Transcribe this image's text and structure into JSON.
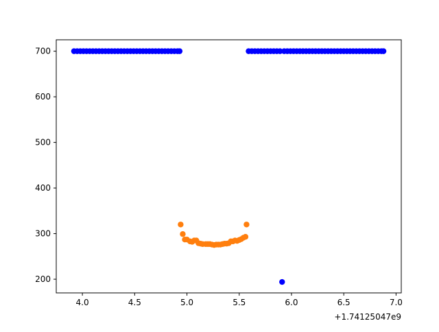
{
  "chart_data": {
    "type": "scatter",
    "title": "",
    "xlabel": "",
    "ylabel": "",
    "x_offset_label": "+1.74125047e9",
    "xlim": [
      3.75,
      7.05
    ],
    "ylim": [
      170,
      725
    ],
    "xticks": [
      {
        "value": 4.0,
        "label": "4.0"
      },
      {
        "value": 4.5,
        "label": "4.5"
      },
      {
        "value": 5.0,
        "label": "5.0"
      },
      {
        "value": 5.5,
        "label": "5.5"
      },
      {
        "value": 6.0,
        "label": "6.0"
      },
      {
        "value": 6.5,
        "label": "6.5"
      },
      {
        "value": 7.0,
        "label": "7.0"
      }
    ],
    "yticks": [
      {
        "value": 200,
        "label": "200"
      },
      {
        "value": 300,
        "label": "300"
      },
      {
        "value": 400,
        "label": "400"
      },
      {
        "value": 500,
        "label": "500"
      },
      {
        "value": 600,
        "label": "600"
      },
      {
        "value": 700,
        "label": "700"
      }
    ],
    "grid": false,
    "legend": "none",
    "series": [
      {
        "color": "#0000ff",
        "points": [
          [
            3.92,
            700
          ],
          [
            3.95,
            700
          ],
          [
            3.98,
            700
          ],
          [
            4.01,
            700
          ],
          [
            4.04,
            700
          ],
          [
            4.07,
            700
          ],
          [
            4.1,
            700
          ],
          [
            4.13,
            700
          ],
          [
            4.16,
            700
          ],
          [
            4.19,
            700
          ],
          [
            4.22,
            700
          ],
          [
            4.25,
            700
          ],
          [
            4.28,
            700
          ],
          [
            4.31,
            700
          ],
          [
            4.34,
            700
          ],
          [
            4.37,
            700
          ],
          [
            4.4,
            700
          ],
          [
            4.43,
            700
          ],
          [
            4.46,
            700
          ],
          [
            4.49,
            700
          ],
          [
            4.52,
            700
          ],
          [
            4.55,
            700
          ],
          [
            4.58,
            700
          ],
          [
            4.61,
            700
          ],
          [
            4.64,
            700
          ],
          [
            4.67,
            700
          ],
          [
            4.7,
            700
          ],
          [
            4.73,
            700
          ],
          [
            4.76,
            700
          ],
          [
            4.79,
            700
          ],
          [
            4.82,
            700
          ],
          [
            4.85,
            700
          ],
          [
            4.88,
            700
          ],
          [
            4.91,
            700
          ],
          [
            4.93,
            700
          ],
          [
            5.59,
            700
          ],
          [
            5.62,
            700
          ],
          [
            5.65,
            700
          ],
          [
            5.68,
            700
          ],
          [
            5.71,
            700
          ],
          [
            5.74,
            700
          ],
          [
            5.77,
            700
          ],
          [
            5.8,
            700
          ],
          [
            5.83,
            700
          ],
          [
            5.86,
            700
          ],
          [
            5.89,
            700
          ],
          [
            5.91,
            194
          ],
          [
            5.93,
            700
          ],
          [
            5.96,
            700
          ],
          [
            5.99,
            700
          ],
          [
            6.02,
            700
          ],
          [
            6.05,
            700
          ],
          [
            6.08,
            700
          ],
          [
            6.11,
            700
          ],
          [
            6.14,
            700
          ],
          [
            6.17,
            700
          ],
          [
            6.2,
            700
          ],
          [
            6.23,
            700
          ],
          [
            6.26,
            700
          ],
          [
            6.29,
            700
          ],
          [
            6.32,
            700
          ],
          [
            6.35,
            700
          ],
          [
            6.38,
            700
          ],
          [
            6.41,
            700
          ],
          [
            6.44,
            700
          ],
          [
            6.47,
            700
          ],
          [
            6.5,
            700
          ],
          [
            6.53,
            700
          ],
          [
            6.56,
            700
          ],
          [
            6.59,
            700
          ],
          [
            6.62,
            700
          ],
          [
            6.65,
            700
          ],
          [
            6.68,
            700
          ],
          [
            6.71,
            700
          ],
          [
            6.74,
            700
          ],
          [
            6.77,
            700
          ],
          [
            6.8,
            700
          ],
          [
            6.83,
            700
          ],
          [
            6.86,
            700
          ],
          [
            6.88,
            700
          ]
        ]
      },
      {
        "color": "#ff7f0e",
        "points": [
          [
            4.94,
            320
          ],
          [
            4.96,
            299
          ],
          [
            4.98,
            287
          ],
          [
            5.0,
            287
          ],
          [
            5.03,
            283
          ],
          [
            5.05,
            282
          ],
          [
            5.07,
            285
          ],
          [
            5.09,
            285
          ],
          [
            5.11,
            279
          ],
          [
            5.13,
            278
          ],
          [
            5.15,
            277
          ],
          [
            5.18,
            277
          ],
          [
            5.2,
            277
          ],
          [
            5.22,
            277
          ],
          [
            5.24,
            276
          ],
          [
            5.26,
            275
          ],
          [
            5.28,
            276
          ],
          [
            5.3,
            276
          ],
          [
            5.32,
            276
          ],
          [
            5.34,
            277
          ],
          [
            5.36,
            278
          ],
          [
            5.38,
            278
          ],
          [
            5.4,
            279
          ],
          [
            5.42,
            283
          ],
          [
            5.44,
            283
          ],
          [
            5.46,
            285
          ],
          [
            5.48,
            284
          ],
          [
            5.5,
            286
          ],
          [
            5.52,
            288
          ],
          [
            5.54,
            291
          ],
          [
            5.56,
            293
          ],
          [
            5.57,
            320
          ]
        ]
      }
    ]
  }
}
